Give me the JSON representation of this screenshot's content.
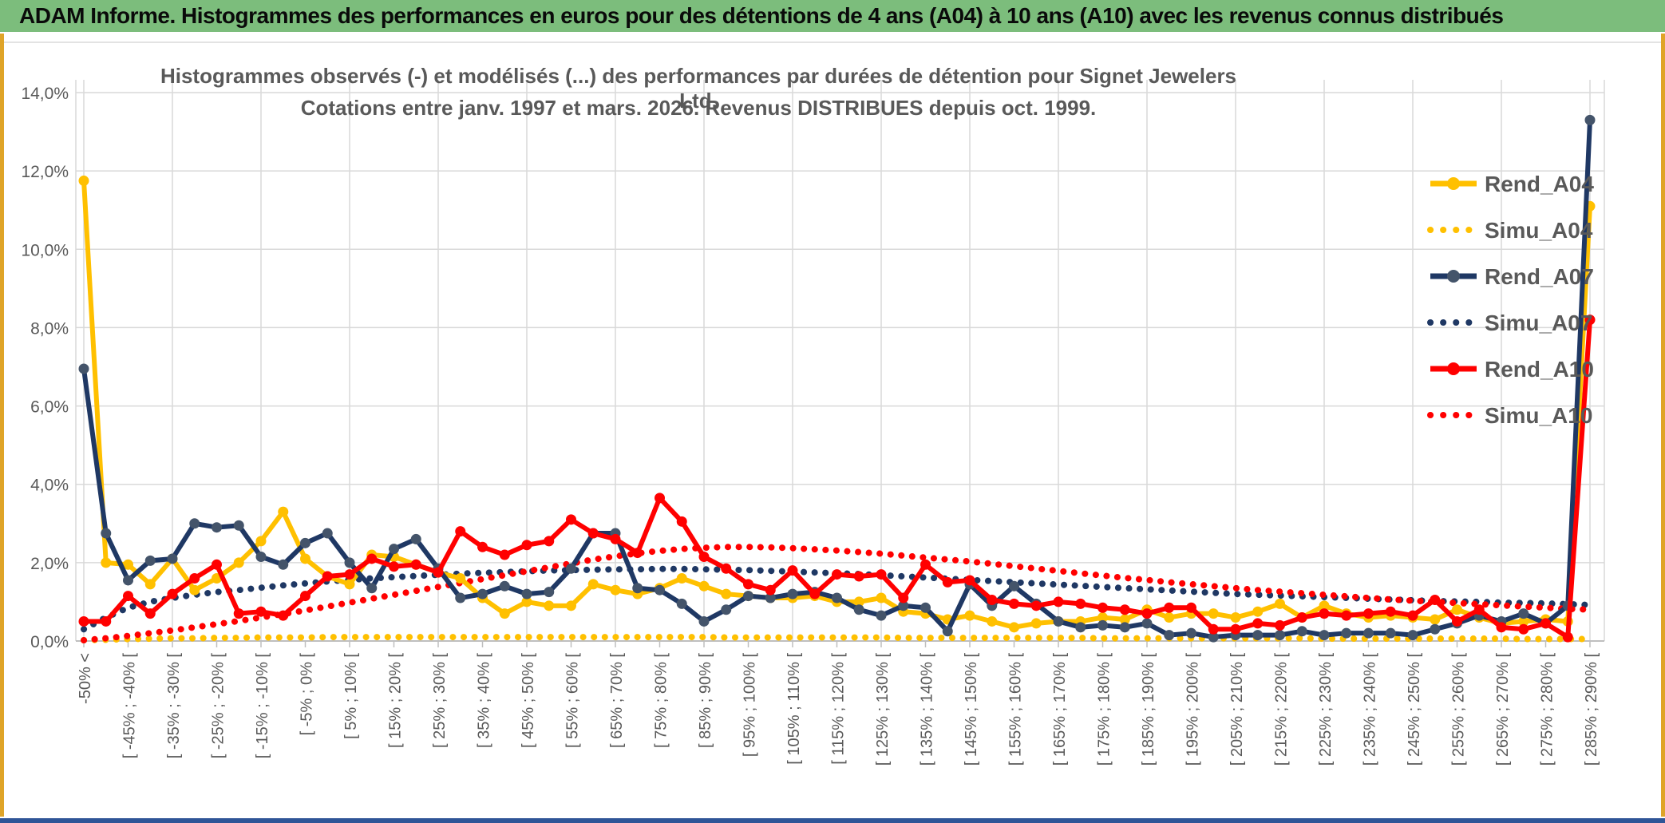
{
  "header": {
    "title": "ADAM Informe. Histogrammes des performances en euros pour des détentions de 4 ans (A04) à 10 ans (A10) avec les revenus connus distribués",
    "bg_color": "#7CBD7C",
    "text_color": "#0a0a0a"
  },
  "page": {
    "side_border_color": "#DFA428",
    "bottom_bar_color": "#2F5597",
    "background": "#ffffff"
  },
  "chart_data": {
    "type": "line",
    "title_line1": "Histogrammes observés (-) et modélisés (...) des performances par durées de détention pour Signet Jewelers Ltd.",
    "title_line2": "Cotations entre janv. 1997 et mars. 2026. Revenus DISTRIBUES depuis oct. 1999.",
    "grid": true,
    "text_color": "#595959",
    "grid_color": "#D9D9D9",
    "axis_color": "#BFBFBF",
    "bins": 69,
    "x_label_every": 2,
    "legend_position": "right-inside",
    "y_axis": {
      "min": 0,
      "max": 14,
      "step": 2,
      "tick_labels": [
        "0,0%",
        "2,0%",
        "4,0%",
        "6,0%",
        "8,0%",
        "10,0%",
        "12,0%",
        "14,0%"
      ]
    },
    "x_axis_labels": [
      "-50% <",
      "[ -45% ; -40% [",
      "[ -35% ; -30% [",
      "[ -25% ; -20% [",
      "[ -15% ; -10% [",
      "[ -5% ; 0% [",
      "[ 5% ; 10% [",
      "[ 15% ; 20% [",
      "[ 25% ; 30% [",
      "[ 35% ; 40% [",
      "[ 45% ; 50% [",
      "[ 55% ; 60% [",
      "[ 65% ; 70% [",
      "[ 75% ; 80% [",
      "[ 85% ; 90% [",
      "[ 95% ; 100% [",
      "[ 105% ; 110% [",
      "[ 115% ; 120% [",
      "[ 125% ; 130% [",
      "[ 135% ; 140% [",
      "[ 145% ; 150% [",
      "[ 155% ; 160% [",
      "[ 165% ; 170% [",
      "[ 175% ; 180% [",
      "[ 185% ; 190% [",
      "[ 195% ; 200% [",
      "[ 205% ; 210% [",
      "[ 215% ; 220% [",
      "[ 225% ; 230% [",
      "[ 235% ; 240% [",
      "[ 245% ; 250% [",
      "[ 255% ; 260% [",
      "[ 265% ; 270% [",
      "[ 275% ; 280% [",
      "[ 285% ; 290% ["
    ],
    "series": [
      {
        "name": "Rend_A04",
        "style": "solid",
        "color": "#FFC000",
        "marker_color": "#FFC000",
        "values": [
          11.75,
          2.0,
          1.95,
          1.45,
          2.1,
          1.3,
          1.6,
          2.0,
          2.55,
          3.3,
          2.1,
          1.65,
          1.45,
          2.2,
          2.15,
          1.95,
          1.75,
          1.6,
          1.1,
          0.7,
          1.0,
          0.9,
          0.9,
          1.45,
          1.3,
          1.2,
          1.35,
          1.6,
          1.4,
          1.2,
          1.15,
          1.1,
          1.1,
          1.15,
          1.0,
          1.0,
          1.1,
          0.75,
          0.7,
          0.55,
          0.65,
          0.5,
          0.35,
          0.45,
          0.5,
          0.5,
          0.6,
          0.55,
          0.8,
          0.6,
          0.7,
          0.7,
          0.6,
          0.75,
          0.95,
          0.6,
          0.9,
          0.7,
          0.6,
          0.65,
          0.6,
          0.55,
          0.8,
          0.6,
          0.45,
          0.5,
          0.55,
          0.5,
          11.1
        ]
      },
      {
        "name": "Simu_A04",
        "style": "dotted",
        "color": "#FFC000",
        "values": [
          0.02,
          0.03,
          0.05,
          0.06,
          0.07,
          0.07,
          0.08,
          0.08,
          0.09,
          0.09,
          0.09,
          0.1,
          0.1,
          0.1,
          0.1,
          0.1,
          0.1,
          0.1,
          0.1,
          0.1,
          0.1,
          0.1,
          0.1,
          0.1,
          0.1,
          0.1,
          0.1,
          0.1,
          0.1,
          0.09,
          0.09,
          0.09,
          0.09,
          0.09,
          0.09,
          0.09,
          0.09,
          0.08,
          0.08,
          0.08,
          0.08,
          0.08,
          0.08,
          0.08,
          0.08,
          0.08,
          0.07,
          0.07,
          0.07,
          0.07,
          0.07,
          0.07,
          0.07,
          0.07,
          0.07,
          0.07,
          0.06,
          0.06,
          0.06,
          0.06,
          0.06,
          0.06,
          0.06,
          0.06,
          0.06,
          0.05,
          0.05,
          0.05,
          0.05
        ]
      },
      {
        "name": "Rend_A07",
        "style": "solid",
        "color": "#1F3864",
        "marker_color": "#44546A",
        "values": [
          6.95,
          2.75,
          1.55,
          2.05,
          2.1,
          3.0,
          2.9,
          2.95,
          2.15,
          1.95,
          2.5,
          2.75,
          2.0,
          1.35,
          2.35,
          2.6,
          1.85,
          1.1,
          1.2,
          1.4,
          1.2,
          1.25,
          1.85,
          2.75,
          2.75,
          1.35,
          1.3,
          0.95,
          0.5,
          0.8,
          1.15,
          1.1,
          1.2,
          1.25,
          1.1,
          0.8,
          0.65,
          0.9,
          0.85,
          0.25,
          1.45,
          0.9,
          1.4,
          0.95,
          0.5,
          0.35,
          0.4,
          0.35,
          0.45,
          0.15,
          0.2,
          0.1,
          0.15,
          0.15,
          0.15,
          0.25,
          0.15,
          0.2,
          0.2,
          0.2,
          0.15,
          0.3,
          0.45,
          0.65,
          0.5,
          0.7,
          0.45,
          0.9,
          13.3
        ]
      },
      {
        "name": "Simu_A07",
        "style": "dotted",
        "color": "#1F3864",
        "values": [
          0.3,
          0.6,
          0.85,
          1.0,
          1.1,
          1.18,
          1.25,
          1.3,
          1.36,
          1.42,
          1.47,
          1.52,
          1.56,
          1.6,
          1.63,
          1.66,
          1.69,
          1.72,
          1.74,
          1.76,
          1.78,
          1.8,
          1.81,
          1.82,
          1.83,
          1.83,
          1.84,
          1.84,
          1.83,
          1.82,
          1.81,
          1.79,
          1.77,
          1.75,
          1.73,
          1.71,
          1.68,
          1.65,
          1.62,
          1.59,
          1.56,
          1.53,
          1.5,
          1.47,
          1.44,
          1.41,
          1.38,
          1.35,
          1.32,
          1.29,
          1.26,
          1.23,
          1.2,
          1.18,
          1.16,
          1.14,
          1.12,
          1.1,
          1.08,
          1.06,
          1.04,
          1.02,
          1.01,
          1.0,
          0.98,
          0.97,
          0.96,
          0.94,
          0.92
        ]
      },
      {
        "name": "Rend_A10",
        "style": "solid",
        "color": "#FF0000",
        "marker_color": "#FF0000",
        "values": [
          0.5,
          0.5,
          1.15,
          0.7,
          1.2,
          1.6,
          1.95,
          0.7,
          0.75,
          0.65,
          1.15,
          1.65,
          1.7,
          2.1,
          1.9,
          1.95,
          1.75,
          2.8,
          2.4,
          2.2,
          2.45,
          2.55,
          3.1,
          2.75,
          2.6,
          2.25,
          3.65,
          3.05,
          2.15,
          1.85,
          1.45,
          1.3,
          1.8,
          1.2,
          1.7,
          1.65,
          1.7,
          1.1,
          1.95,
          1.5,
          1.55,
          1.05,
          0.95,
          0.9,
          1.0,
          0.95,
          0.85,
          0.8,
          0.7,
          0.85,
          0.85,
          0.3,
          0.3,
          0.45,
          0.4,
          0.6,
          0.7,
          0.65,
          0.7,
          0.75,
          0.65,
          1.05,
          0.5,
          0.8,
          0.35,
          0.3,
          0.45,
          0.1,
          8.2
        ]
      },
      {
        "name": "Simu_A10",
        "style": "dotted",
        "color": "#FF0000",
        "values": [
          0.02,
          0.07,
          0.13,
          0.2,
          0.27,
          0.35,
          0.43,
          0.51,
          0.6,
          0.69,
          0.78,
          0.88,
          0.98,
          1.08,
          1.18,
          1.28,
          1.38,
          1.48,
          1.58,
          1.68,
          1.78,
          1.88,
          1.98,
          2.08,
          2.16,
          2.24,
          2.3,
          2.35,
          2.38,
          2.4,
          2.4,
          2.39,
          2.37,
          2.34,
          2.31,
          2.27,
          2.23,
          2.18,
          2.13,
          2.08,
          2.03,
          1.97,
          1.91,
          1.85,
          1.79,
          1.73,
          1.67,
          1.61,
          1.56,
          1.5,
          1.45,
          1.4,
          1.35,
          1.3,
          1.26,
          1.22,
          1.18,
          1.14,
          1.1,
          1.06,
          1.03,
          1.0,
          0.97,
          0.94,
          0.91,
          0.88,
          0.85,
          0.82,
          0.8
        ]
      }
    ]
  }
}
